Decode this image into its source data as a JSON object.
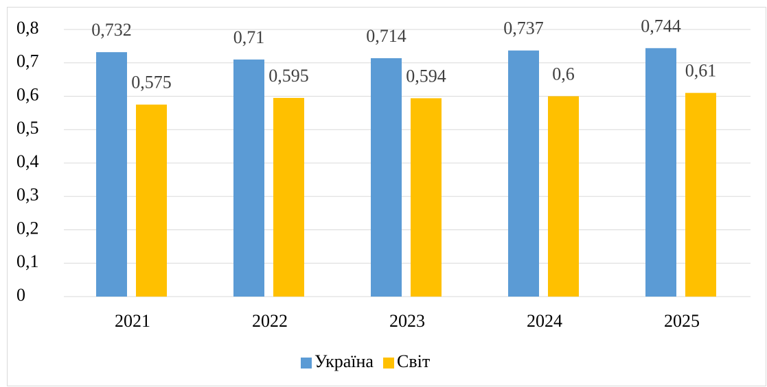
{
  "chart_data": {
    "type": "bar",
    "categories": [
      "2021",
      "2022",
      "2023",
      "2024",
      "2025"
    ],
    "series": [
      {
        "name": "Україна",
        "color": "#5b9bd5",
        "values": [
          0.732,
          0.71,
          0.714,
          0.737,
          0.744
        ],
        "value_labels": [
          "0,732",
          "0,71",
          "0,714",
          "0,737",
          "0,744"
        ]
      },
      {
        "name": "Світ",
        "color": "#ffc000",
        "values": [
          0.575,
          0.595,
          0.594,
          0.6,
          0.61
        ],
        "value_labels": [
          "0,575",
          "0,595",
          "0,594",
          "0,6",
          "0,61"
        ]
      }
    ],
    "ylim": [
      0,
      0.8
    ],
    "yticks": [
      0,
      {
        "value": 0.1,
        "label": "0,1"
      },
      {
        "value": 0.2,
        "label": "0,2"
      },
      {
        "value": 0.3,
        "label": "0,3"
      },
      {
        "value": 0.4,
        "label": "0,4"
      },
      {
        "value": 0.5,
        "label": "0,5"
      },
      {
        "value": 0.6,
        "label": "0,6"
      },
      {
        "value": 0.7,
        "label": "0,7"
      },
      {
        "value": 0.8,
        "label": "0,8"
      }
    ],
    "grid": true,
    "legend": "bottom"
  }
}
